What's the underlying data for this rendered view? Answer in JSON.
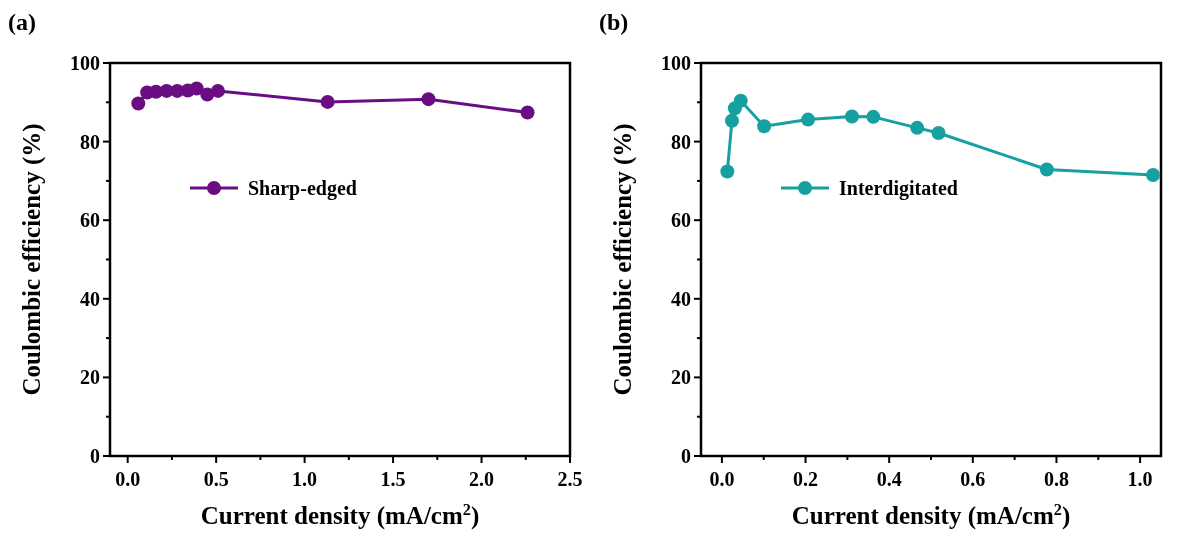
{
  "chart_data": [
    {
      "type": "line",
      "title": "(a)",
      "xlabel": "Current density (mA/cm$^{2}$)",
      "ylabel": "Coulombic efficiency (%)",
      "xlim": [
        -0.1,
        2.5
      ],
      "xticks": [
        {
          "value": 0,
          "label": "0.0"
        },
        0.5,
        {
          "value": 1,
          "label": "1.0"
        },
        1.5,
        {
          "value": 2,
          "label": "2.0"
        },
        2.5
      ],
      "ylim": [
        0,
        100
      ],
      "yticks": [
        0,
        20,
        40,
        60,
        80,
        100
      ],
      "marker": "circle",
      "legend": "top left",
      "grid": false,
      "series": [
        {
          "name": "Sharp-edged",
          "color": "#6a0d83",
          "x": [
            0.06,
            0.11,
            0.16,
            0.22,
            0.28,
            0.34,
            0.39,
            0.45,
            0.51,
            1.13,
            1.7,
            2.26
          ],
          "values": [
            89.7,
            92.5,
            92.7,
            92.9,
            92.9,
            93,
            93.5,
            92,
            92.9,
            90.1,
            90.8,
            87.4
          ]
        }
      ]
    },
    {
      "type": "line",
      "title": "(b)",
      "xlabel": "Current density (mA/cm$^{2}$)",
      "ylabel": "Coulombic efficiency (%)",
      "xlim": [
        -0.05,
        1.05
      ],
      "xticks": [
        {
          "value": 0,
          "label": "0.0"
        },
        0.2,
        0.4,
        0.6,
        0.8,
        {
          "value": 1,
          "label": "1.0"
        }
      ],
      "ylim": [
        0,
        100
      ],
      "yticks": [
        0,
        20,
        40,
        60,
        80,
        100
      ],
      "marker": "circle",
      "legend": "top left",
      "grid": false,
      "series": [
        {
          "name": "Interdigitated",
          "color": "#17a0a0",
          "x": [
            0.013,
            0.024,
            0.031,
            0.045,
            0.101,
            0.206,
            0.311,
            0.362,
            0.467,
            0.518,
            0.777,
            1.031
          ],
          "values": [
            72.4,
            85.3,
            88.5,
            90.4,
            83.9,
            85.6,
            86.4,
            86.3,
            83.5,
            82.2,
            72.9,
            71.5
          ]
        }
      ]
    }
  ]
}
